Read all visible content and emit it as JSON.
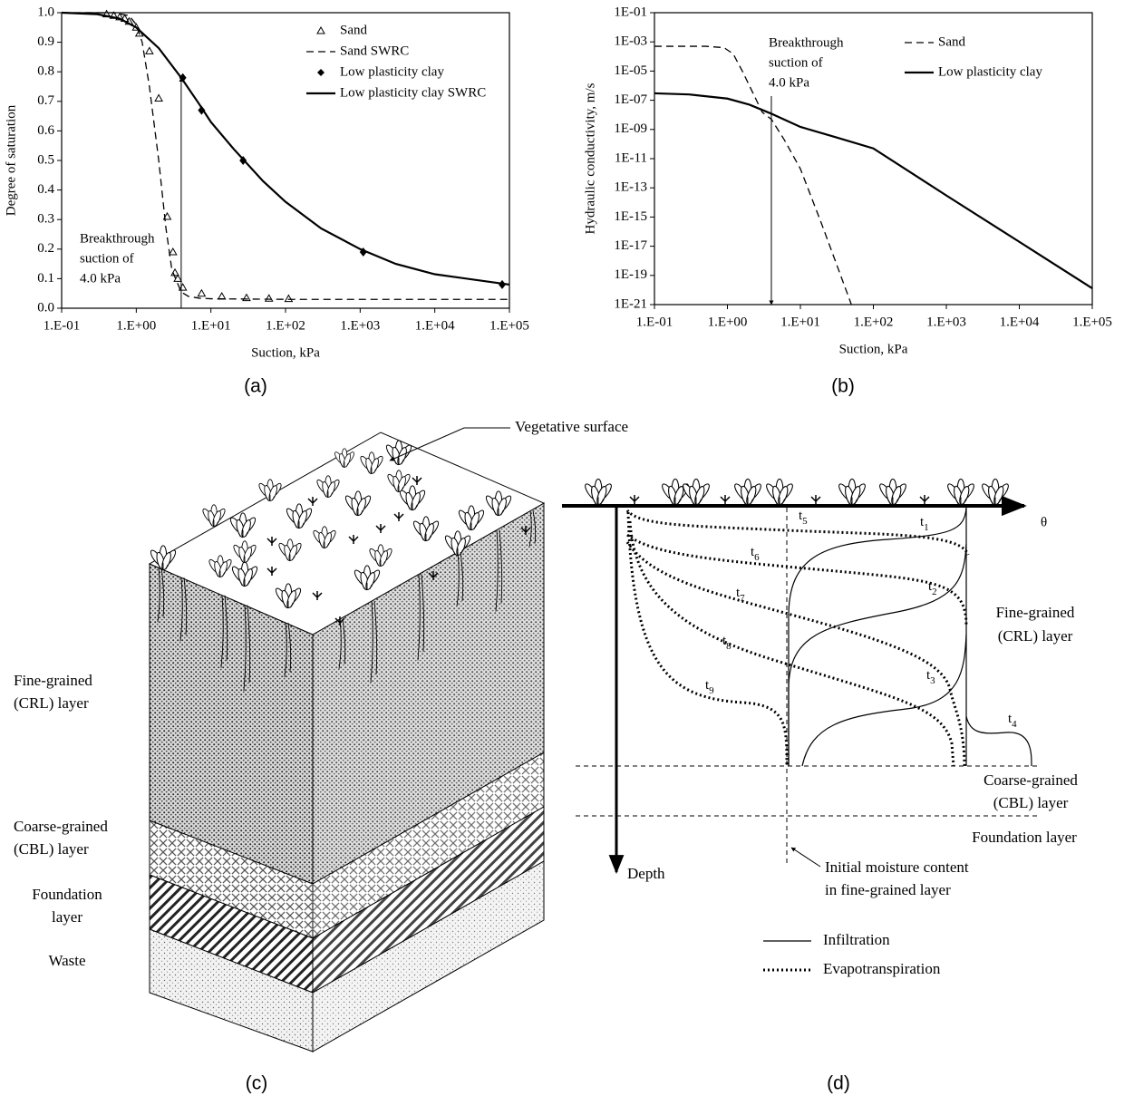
{
  "chart_data": [
    {
      "type": "line",
      "xlabel": "Suction, kPa",
      "ylabel": "Degree of saturation",
      "xscale": "log",
      "yscale": "linear",
      "xlim": [
        0.1,
        100000
      ],
      "ylim": [
        0,
        1
      ],
      "xticks": [
        {
          "value": 0.1,
          "label": "1.E-01"
        },
        {
          "value": 1,
          "label": "1.E+00"
        },
        {
          "value": 10,
          "label": "1.E+01"
        },
        {
          "value": 100,
          "label": "1.E+02"
        },
        {
          "value": 1000,
          "label": "1.E+03"
        },
        {
          "value": 10000,
          "label": "1.E+04"
        },
        {
          "value": 100000,
          "label": "1.E+05"
        }
      ],
      "yticks": [
        {
          "value": 0,
          "label": "0.0"
        },
        0.1,
        0.2,
        0.3,
        0.4,
        0.5,
        0.6,
        0.7,
        0.8,
        0.9,
        {
          "value": 1,
          "label": "1.0"
        }
      ],
      "legend": "upper right",
      "annotation": [
        "Breakthrough",
        "suction of",
        "4.0 kPa"
      ],
      "breakthrough_suction": 4,
      "series": [
        {
          "name": "Sand",
          "style": "markers",
          "marker": "triangle",
          "color": "#000000",
          "x": [
            0.4,
            0.5,
            0.6,
            0.7,
            0.8,
            1.0,
            1.1,
            1.5,
            2,
            2.6,
            3.1,
            3.3,
            3.6,
            4.2,
            7.5,
            14,
            30,
            60,
            110
          ],
          "values": [
            0.995,
            0.99,
            0.985,
            0.98,
            0.97,
            0.95,
            0.93,
            0.87,
            0.71,
            0.31,
            0.19,
            0.12,
            0.1,
            0.07,
            0.05,
            0.04,
            0.035,
            0.033,
            0.032
          ]
        },
        {
          "name": "Sand SWRC",
          "style": "line",
          "dash": true,
          "color": "#000000",
          "x": [
            0.1,
            0.5,
            0.8,
            1,
            1.2,
            1.5,
            2,
            2.5,
            3,
            4,
            5,
            7,
            10,
            100,
            1000,
            10000,
            100000
          ],
          "values": [
            1,
            1,
            0.99,
            0.96,
            0.9,
            0.75,
            0.5,
            0.27,
            0.13,
            0.055,
            0.04,
            0.034,
            0.032,
            0.03,
            0.03,
            0.03,
            0.03
          ]
        },
        {
          "name": "Low plasticity clay",
          "style": "markers",
          "marker": "diamond",
          "color": "#000000",
          "x": [
            4.2,
            7.5,
            27,
            1100,
            80000
          ],
          "values": [
            0.78,
            0.67,
            0.5,
            0.19,
            0.08
          ]
        },
        {
          "name": "Low plasticity clay SWRC",
          "style": "line",
          "dash": false,
          "color": "#000000",
          "x": [
            0.1,
            0.3,
            0.6,
            1,
            2,
            4,
            7,
            10,
            20,
            50,
            100,
            300,
            1000,
            3000,
            10000,
            100000
          ],
          "values": [
            1,
            0.995,
            0.98,
            0.95,
            0.88,
            0.78,
            0.69,
            0.63,
            0.54,
            0.43,
            0.36,
            0.27,
            0.2,
            0.15,
            0.115,
            0.08
          ]
        }
      ]
    },
    {
      "type": "line",
      "xlabel": "Suction, kPa",
      "ylabel": "Hydraulic conductivity, m/s",
      "xscale": "log",
      "yscale": "log",
      "xlim": [
        0.1,
        100000
      ],
      "ylim": [
        1e-21,
        0.1
      ],
      "xticks": [
        {
          "value": 0.1,
          "label": "1.E-01"
        },
        {
          "value": 1,
          "label": "1.E+00"
        },
        {
          "value": 10,
          "label": "1.E+01"
        },
        {
          "value": 100,
          "label": "1.E+02"
        },
        {
          "value": 1000,
          "label": "1.E+03"
        },
        {
          "value": 10000,
          "label": "1.E+04"
        },
        {
          "value": 100000,
          "label": "1.E+05"
        }
      ],
      "yticks": [
        {
          "value": 1e-21,
          "label": "1E-21"
        },
        {
          "value": 1e-19,
          "label": "1E-19"
        },
        {
          "value": 1e-17,
          "label": "1E-17"
        },
        {
          "value": 1e-15,
          "label": "1E-15"
        },
        {
          "value": 1e-13,
          "label": "1E-13"
        },
        {
          "value": 1e-11,
          "label": "1E-11"
        },
        {
          "value": 1e-09,
          "label": "1E-09"
        },
        {
          "value": 1e-07,
          "label": "1E-07"
        },
        {
          "value": 1e-05,
          "label": "1E-05"
        },
        {
          "value": 0.001,
          "label": "1E-03"
        },
        {
          "value": 0.1,
          "label": "1E-01"
        }
      ],
      "legend": "upper right",
      "annotation": [
        "Breakthrough",
        "suction of",
        "4.0 kPa"
      ],
      "breakthrough_suction": 4,
      "series": [
        {
          "name": "Sand",
          "style": "line",
          "dash": true,
          "color": "#000000",
          "x": [
            0.1,
            0.5,
            0.9,
            1.2,
            1.6,
            2,
            2.5,
            3,
            4,
            6,
            10,
            20,
            50
          ],
          "values": [
            0.0005,
            0.0005,
            0.0004,
            0.00015,
            1e-05,
            1e-06,
            1e-07,
            1.5e-08,
            5e-09,
            2e-10,
            2e-12,
            2.5e-16,
            1e-21
          ]
        },
        {
          "name": "Low plasticity clay",
          "style": "line",
          "dash": false,
          "color": "#000000",
          "x": [
            0.1,
            0.3,
            1,
            2,
            4,
            10,
            30,
            100,
            1000,
            10000,
            100000
          ],
          "values": [
            3e-07,
            2.5e-07,
            1.3e-07,
            5e-08,
            1.2e-08,
            1.5e-09,
            3e-10,
            5e-11,
            3e-14,
            2e-17,
            1.3e-20
          ]
        }
      ]
    }
  ],
  "panel_labels": [
    "(a)",
    "(b)",
    "(c)",
    "(d)"
  ],
  "diagram_c": {
    "surface_label": "Vegetative surface",
    "layers": [
      [
        "Fine-grained",
        "(CRL) layer"
      ],
      [
        "Coarse-grained",
        "(CBL) layer"
      ],
      [
        "Foundation",
        "layer"
      ],
      [
        "Waste"
      ]
    ]
  },
  "diagram_d": {
    "x_axis": "θ",
    "y_axis": "Depth",
    "layers": [
      [
        "Fine-grained",
        "(CRL) layer"
      ],
      [
        "Coarse-grained",
        "(CBL) layer"
      ],
      [
        "Foundation layer"
      ]
    ],
    "initial_note": [
      "Initial moisture content",
      "in fine-grained layer"
    ],
    "time_labels": [
      {
        "base": "t",
        "sub": "1"
      },
      {
        "base": "t",
        "sub": "2"
      },
      {
        "base": "t",
        "sub": "3"
      },
      {
        "base": "t",
        "sub": "4"
      },
      {
        "base": "t",
        "sub": "5"
      },
      {
        "base": "t",
        "sub": "6"
      },
      {
        "base": "t",
        "sub": "7"
      },
      {
        "base": "t",
        "sub": "8"
      },
      {
        "base": "t",
        "sub": "9"
      }
    ],
    "legend": [
      "Infiltration",
      "Evapotranspiration"
    ]
  }
}
